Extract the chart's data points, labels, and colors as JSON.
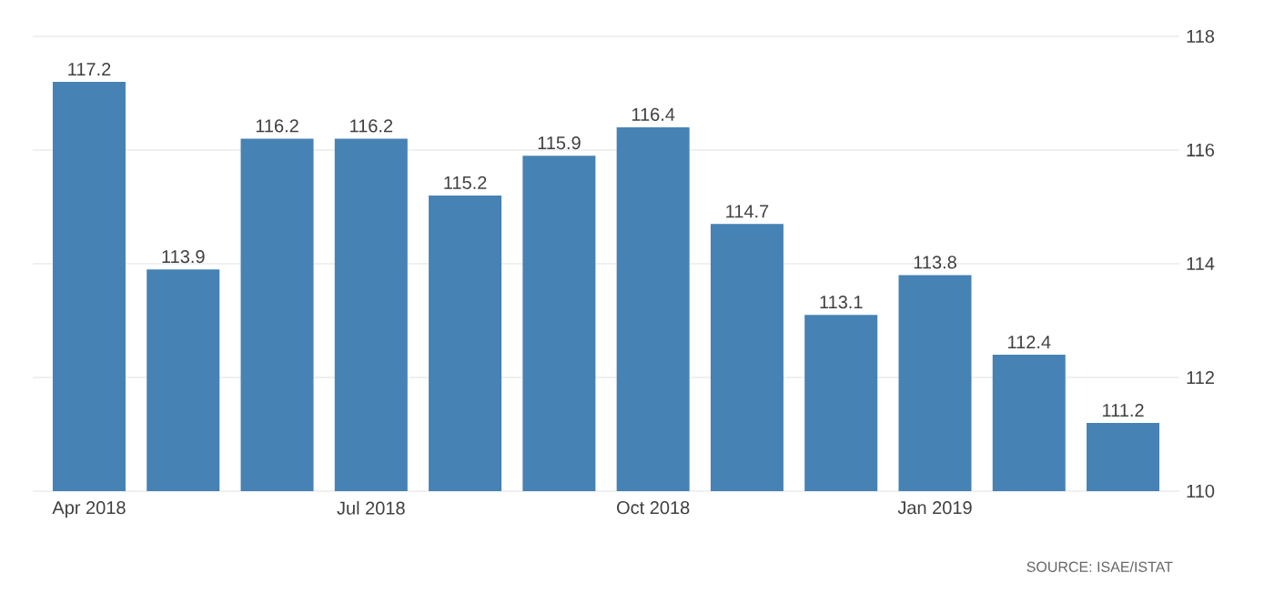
{
  "chart_data": {
    "type": "bar",
    "categories": [
      "Apr 2018",
      null,
      null,
      "Jul 2018",
      null,
      null,
      "Oct 2018",
      null,
      null,
      "Jan 2019",
      null,
      null
    ],
    "values": [
      117.2,
      113.9,
      116.2,
      116.2,
      115.2,
      115.9,
      116.4,
      114.7,
      113.1,
      113.8,
      112.4,
      111.2
    ],
    "color": "#4682b4",
    "ylim": [
      110,
      118
    ],
    "yticks": [
      110,
      112,
      114,
      116,
      118
    ],
    "grid": "y",
    "data_labels": true,
    "annotations": [
      "SOURCE: ISAE/ISTAT"
    ]
  }
}
